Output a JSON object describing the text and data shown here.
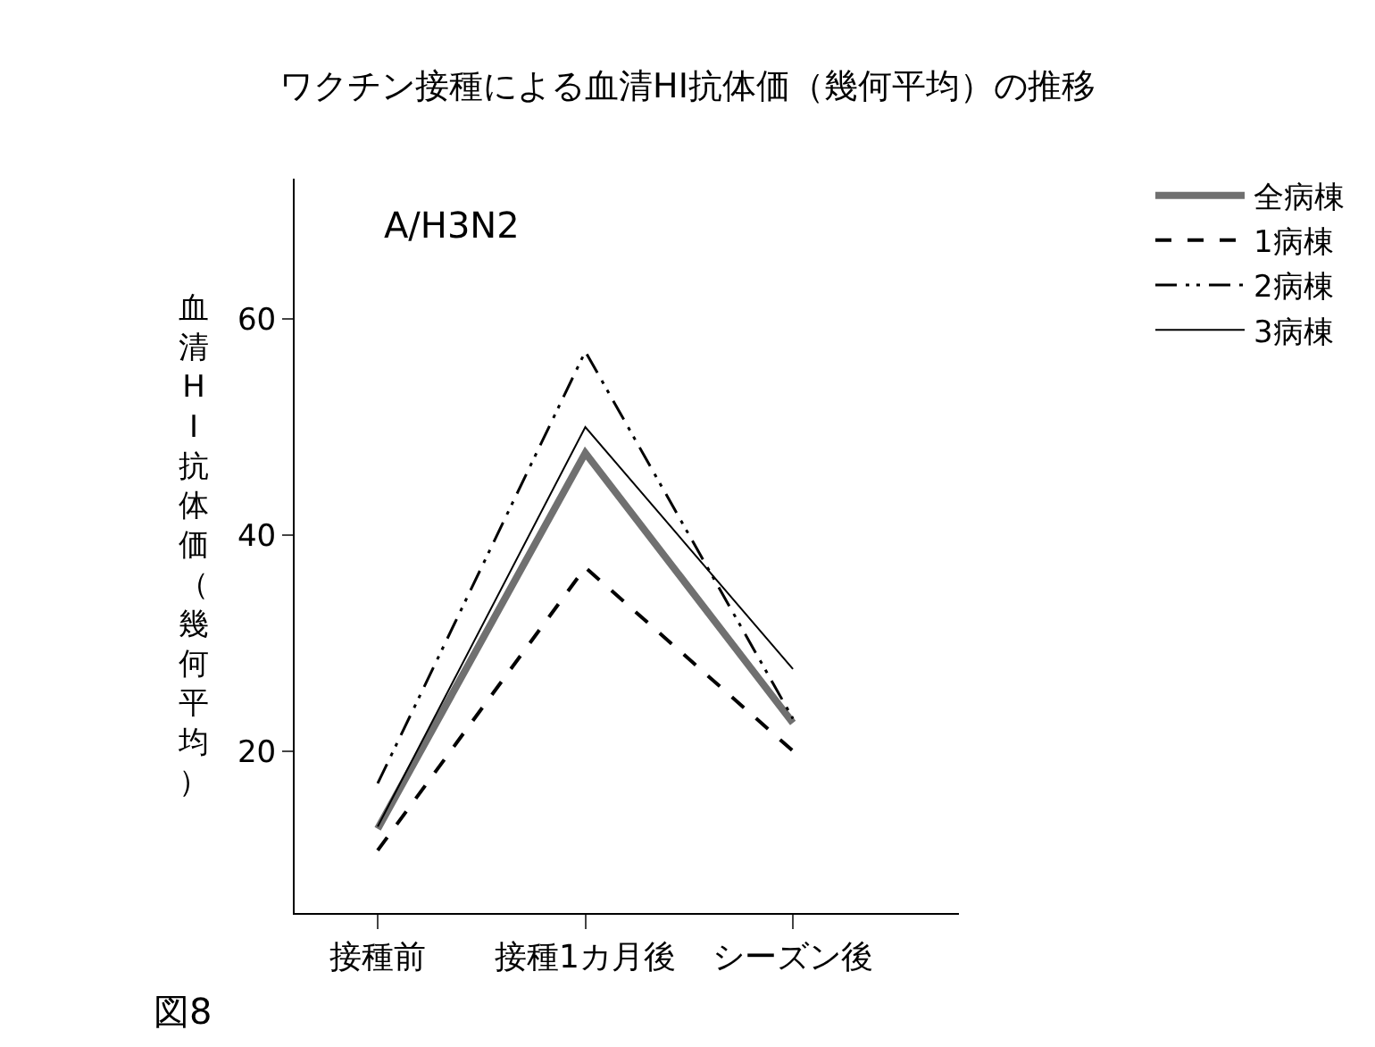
{
  "chart_data": {
    "type": "line",
    "title": "ワクチン接種による血清HI抗体価（幾何平均）の推移",
    "ylabel": "血清HI抗体価（幾何平均）",
    "categories": [
      "接種前",
      "接種1カ月後",
      "シーズン後"
    ],
    "series": [
      {
        "name": "全病棟",
        "color": "#707070",
        "values": [
          12.8,
          47.6,
          22.6
        ],
        "line_style": "solid"
      },
      {
        "name": "1病棟",
        "color": "#000000",
        "values": [
          10.8,
          37.0,
          20.0
        ],
        "line_style": "dashed"
      },
      {
        "name": "2病棟",
        "color": "#000000",
        "values": [
          17.0,
          57.0,
          23.0
        ],
        "line_style": "dashdot"
      },
      {
        "name": "3病棟",
        "color": "#000000",
        "values": [
          13.0,
          50.0,
          27.6
        ],
        "line_style": "solid"
      }
    ],
    "ylim": [
      5,
      73
    ],
    "yticks": [
      20,
      40,
      60
    ],
    "legend": "right",
    "marker": "none",
    "annotations": [
      "A/H3N2",
      "図8"
    ]
  }
}
